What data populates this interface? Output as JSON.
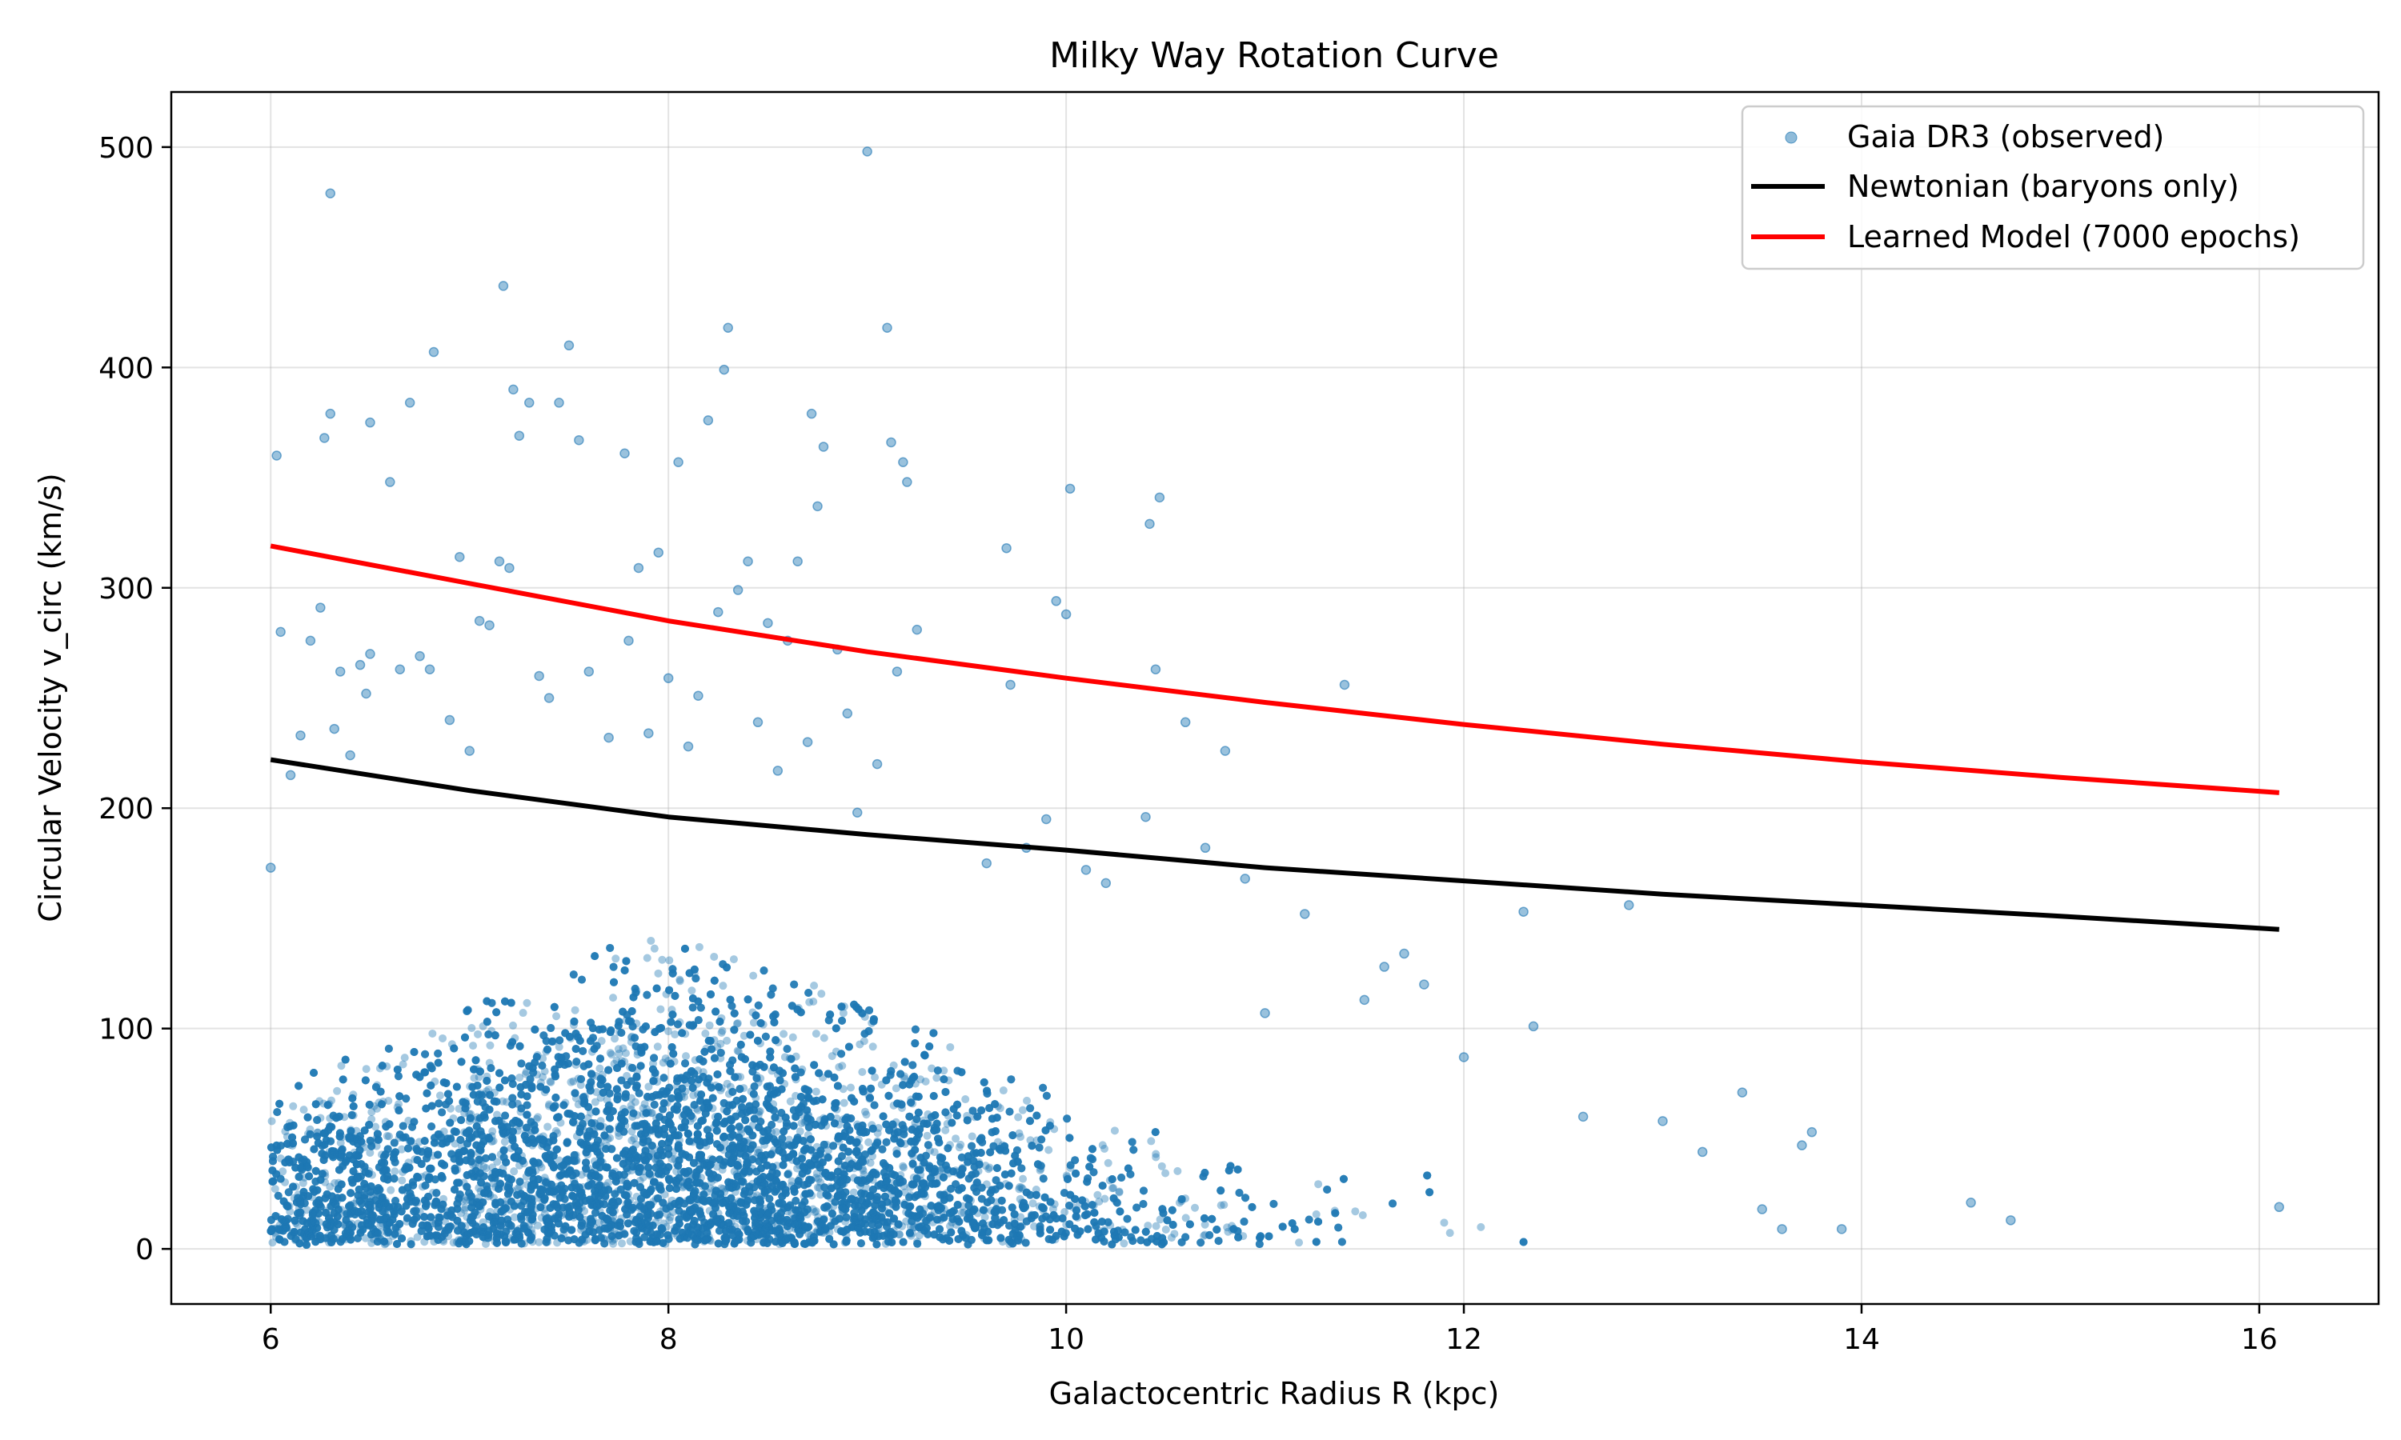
{
  "chart_data": {
    "type": "scatter",
    "title": "Milky Way Rotation Curve",
    "xlabel": "Galactocentric Radius R (kpc)",
    "ylabel": "Circular Velocity v_circ (km/s)",
    "xlim": [
      5.5,
      16.6
    ],
    "ylim": [
      -25,
      525
    ],
    "xticks": [
      "6",
      "8",
      "10",
      "12",
      "14",
      "16"
    ],
    "yticks": [
      "0",
      "100",
      "200",
      "300",
      "400",
      "500"
    ],
    "grid": true,
    "legend_position": "top-right",
    "colors": {
      "scatter": "#1f77b4",
      "newtonian": "#000000",
      "learned": "#ff0000"
    },
    "series": [
      {
        "name": "Gaia DR3 (observed)",
        "kind": "scatter",
        "color": "#1f77b4",
        "opacity": 0.4,
        "points": [
          [
            6.0,
            173
          ],
          [
            6.03,
            360
          ],
          [
            6.05,
            280
          ],
          [
            6.1,
            215
          ],
          [
            6.15,
            233
          ],
          [
            6.2,
            276
          ],
          [
            6.25,
            291
          ],
          [
            6.27,
            368
          ],
          [
            6.3,
            379
          ],
          [
            6.3,
            479
          ],
          [
            6.32,
            236
          ],
          [
            6.35,
            262
          ],
          [
            6.4,
            224
          ],
          [
            6.45,
            265
          ],
          [
            6.48,
            252
          ],
          [
            6.5,
            375
          ],
          [
            6.5,
            270
          ],
          [
            6.6,
            348
          ],
          [
            6.65,
            263
          ],
          [
            6.7,
            384
          ],
          [
            6.75,
            269
          ],
          [
            6.8,
            263
          ],
          [
            6.82,
            407
          ],
          [
            6.9,
            240
          ],
          [
            6.95,
            314
          ],
          [
            7.0,
            226
          ],
          [
            7.05,
            285
          ],
          [
            7.1,
            283
          ],
          [
            7.15,
            312
          ],
          [
            7.17,
            437
          ],
          [
            7.2,
            309
          ],
          [
            7.22,
            390
          ],
          [
            7.25,
            369
          ],
          [
            7.3,
            384
          ],
          [
            7.35,
            260
          ],
          [
            7.4,
            250
          ],
          [
            7.45,
            384
          ],
          [
            7.5,
            410
          ],
          [
            7.55,
            367
          ],
          [
            7.6,
            262
          ],
          [
            7.7,
            232
          ],
          [
            7.78,
            361
          ],
          [
            7.8,
            276
          ],
          [
            7.85,
            309
          ],
          [
            7.9,
            234
          ],
          [
            7.95,
            316
          ],
          [
            8.0,
            259
          ],
          [
            8.05,
            357
          ],
          [
            8.1,
            228
          ],
          [
            8.15,
            251
          ],
          [
            8.2,
            376
          ],
          [
            8.25,
            289
          ],
          [
            8.28,
            399
          ],
          [
            8.3,
            418
          ],
          [
            8.35,
            299
          ],
          [
            8.4,
            312
          ],
          [
            8.45,
            239
          ],
          [
            8.5,
            284
          ],
          [
            8.55,
            217
          ],
          [
            8.6,
            276
          ],
          [
            8.65,
            312
          ],
          [
            8.7,
            230
          ],
          [
            8.72,
            379
          ],
          [
            8.75,
            337
          ],
          [
            8.78,
            364
          ],
          [
            8.85,
            272
          ],
          [
            8.9,
            243
          ],
          [
            8.95,
            198
          ],
          [
            9.0,
            498
          ],
          [
            9.05,
            220
          ],
          [
            9.1,
            418
          ],
          [
            9.12,
            366
          ],
          [
            9.15,
            262
          ],
          [
            9.18,
            357
          ],
          [
            9.2,
            348
          ],
          [
            9.25,
            281
          ],
          [
            9.6,
            175
          ],
          [
            9.7,
            318
          ],
          [
            9.72,
            256
          ],
          [
            9.8,
            182
          ],
          [
            9.9,
            195
          ],
          [
            9.95,
            294
          ],
          [
            10.0,
            288
          ],
          [
            10.02,
            345
          ],
          [
            10.1,
            172
          ],
          [
            10.2,
            166
          ],
          [
            10.4,
            196
          ],
          [
            10.42,
            329
          ],
          [
            10.45,
            263
          ],
          [
            10.47,
            341
          ],
          [
            10.6,
            239
          ],
          [
            10.7,
            182
          ],
          [
            10.8,
            226
          ],
          [
            10.9,
            168
          ],
          [
            11.0,
            107
          ],
          [
            11.2,
            152
          ],
          [
            11.4,
            256
          ],
          [
            11.5,
            113
          ],
          [
            11.6,
            128
          ],
          [
            11.7,
            134
          ],
          [
            11.8,
            120
          ],
          [
            12.0,
            87
          ],
          [
            12.3,
            153
          ],
          [
            12.35,
            101
          ],
          [
            12.6,
            60
          ],
          [
            12.83,
            156
          ],
          [
            13.0,
            58
          ],
          [
            13.2,
            44
          ],
          [
            13.4,
            71
          ],
          [
            13.5,
            18
          ],
          [
            13.6,
            9
          ],
          [
            13.7,
            47
          ],
          [
            13.75,
            53
          ],
          [
            13.9,
            9
          ],
          [
            14.55,
            21
          ],
          [
            14.75,
            13
          ],
          [
            16.1,
            19
          ]
        ],
        "dense_region": "R 6–11.5 kpc, v_circ 0–140 km/s, densest near R 6–9 kpc below 100 km/s"
      },
      {
        "name": "Newtonian (baryons only)",
        "kind": "line",
        "color": "#000000",
        "x": [
          6,
          7,
          8,
          9,
          10,
          11,
          12,
          13,
          14,
          15,
          16.1
        ],
        "y": [
          222,
          208,
          196,
          188,
          181,
          173,
          167,
          161,
          156,
          151,
          145
        ]
      },
      {
        "name": "Learned Model (7000 epochs)",
        "kind": "line",
        "color": "#ff0000",
        "x": [
          6,
          7,
          8,
          9,
          10,
          11,
          12,
          13,
          14,
          15,
          16.1
        ],
        "y": [
          319,
          302,
          285,
          271,
          259,
          248,
          238,
          229,
          221,
          214,
          207
        ]
      }
    ]
  }
}
